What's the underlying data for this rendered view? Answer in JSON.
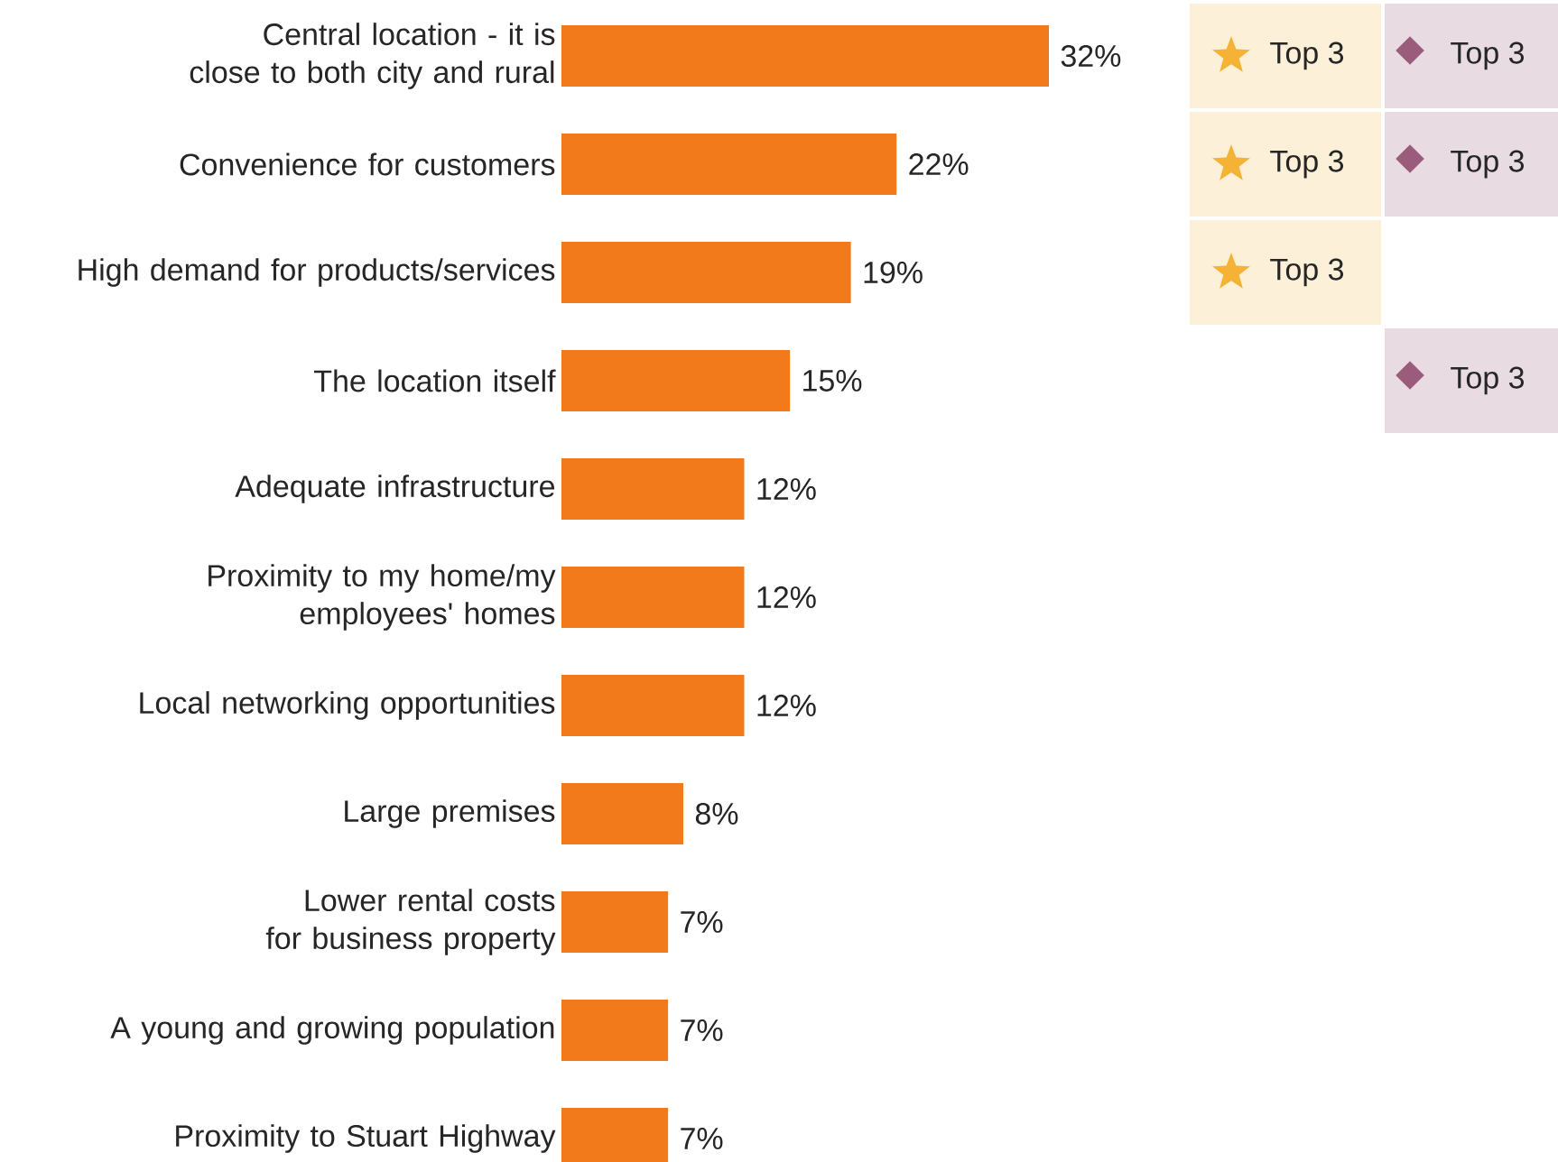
{
  "chart_data": {
    "type": "bar",
    "orientation": "horizontal",
    "color": "#f27a1a",
    "categories": [
      "Central location - it is close to both city and rural",
      "Convenience for customers",
      "High demand for products/services",
      "The location itself",
      "Adequate infrastructure",
      "Proximity to my home/my employees' homes",
      "Local networking opportunities",
      "Large premises",
      "Lower rental costs for business property",
      "A young and growing population",
      "Proximity to Stuart Highway"
    ],
    "values": [
      32,
      22,
      19,
      15,
      12,
      12,
      12,
      8,
      7,
      7,
      7
    ],
    "value_labels": [
      "32%",
      "22%",
      "19%",
      "15%",
      "12%",
      "12%",
      "12%",
      "8%",
      "7%",
      "7%",
      "7%"
    ],
    "annotations": [
      "Top 3",
      "Top 3",
      "Top 3",
      "Top 3",
      "Top 3",
      "Top 3"
    ]
  }
}
